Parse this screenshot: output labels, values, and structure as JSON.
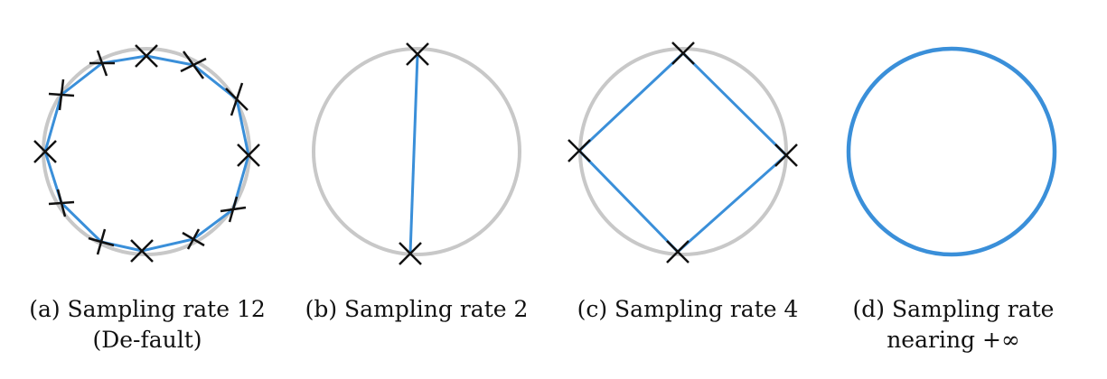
{
  "panels": [
    {
      "id": "a",
      "caption": "(a) Sampling rate 12 (De-fault)",
      "samples": 12
    },
    {
      "id": "b",
      "caption": "(b) Sampling rate 2",
      "samples": 2
    },
    {
      "id": "c",
      "caption": "(c) Sampling rate 4",
      "samples": 4
    },
    {
      "id": "d",
      "caption": "(d) Sampling rate nearing +∞",
      "samples": "∞"
    }
  ],
  "colors": {
    "reference_circle": "#c8c8c8",
    "sampled_shape": "#3a8fd9",
    "sample_marker": "#111111"
  }
}
